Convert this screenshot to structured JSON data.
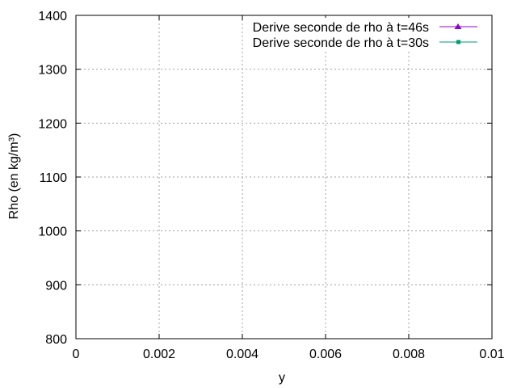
{
  "chart_data": {
    "type": "line",
    "title": "",
    "xlabel": "y",
    "ylabel": "Rho (en kg/m³)",
    "xlim": [
      0,
      0.01
    ],
    "ylim": [
      800,
      1400
    ],
    "x_ticks": [
      {
        "value": 0,
        "label": "0"
      },
      {
        "value": 0.002,
        "label": "0.002"
      },
      {
        "value": 0.004,
        "label": "0.004"
      },
      {
        "value": 0.006,
        "label": "0.006"
      },
      {
        "value": 0.008,
        "label": "0.008"
      },
      {
        "value": 0.01,
        "label": "0.01"
      }
    ],
    "y_ticks": [
      {
        "value": 800,
        "label": "800"
      },
      {
        "value": 900,
        "label": "900"
      },
      {
        "value": 1000,
        "label": "1000"
      },
      {
        "value": 1100,
        "label": "1100"
      },
      {
        "value": 1200,
        "label": "1200"
      },
      {
        "value": 1300,
        "label": "1300"
      },
      {
        "value": 1400,
        "label": "1400"
      }
    ],
    "grid": true,
    "legend_position": "top-right",
    "series": [
      {
        "name": "Derive seconde de rho à t=46s",
        "color": "#9400d3",
        "marker": "triangle",
        "x": [],
        "y": []
      },
      {
        "name": "Derive seconde de rho à t=30s",
        "color": "#009e73",
        "marker": "square",
        "x": [],
        "y": []
      }
    ]
  }
}
